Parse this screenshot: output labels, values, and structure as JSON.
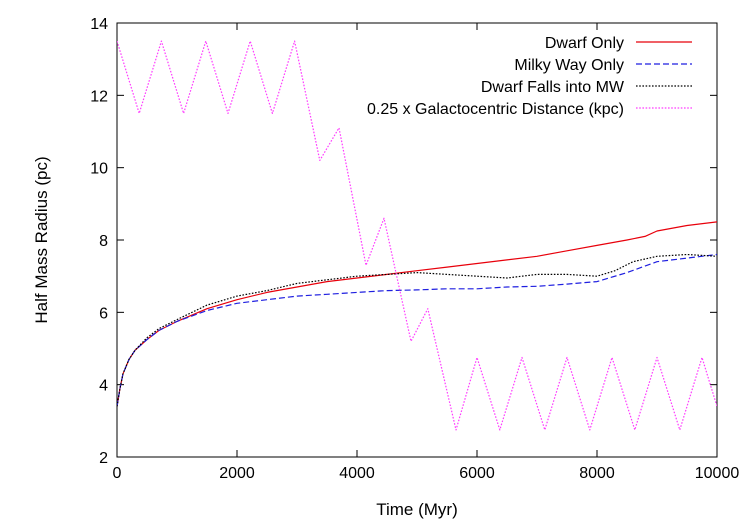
{
  "chart_data": {
    "type": "line",
    "xlabel": "Time (Myr)",
    "ylabel": "Half Mass Radius (pc)",
    "xlim": [
      0,
      10000
    ],
    "ylim": [
      2,
      14
    ],
    "xticks": [
      0,
      2000,
      4000,
      6000,
      8000,
      10000
    ],
    "yticks": [
      2,
      4,
      6,
      8,
      10,
      12,
      14
    ],
    "grid": false,
    "legend_position": "top-right",
    "series": [
      {
        "name": "Dwarf Only",
        "color": "#e8000b",
        "style": "solid",
        "x": [
          0,
          50,
          100,
          200,
          300,
          500,
          700,
          1000,
          1500,
          2000,
          2500,
          3000,
          3500,
          4000,
          4500,
          5000,
          5500,
          6000,
          6500,
          7000,
          7500,
          8000,
          8500,
          8800,
          9000,
          9500,
          10000
        ],
        "y": [
          3.4,
          3.9,
          4.3,
          4.7,
          4.95,
          5.25,
          5.5,
          5.75,
          6.1,
          6.35,
          6.55,
          6.7,
          6.85,
          6.95,
          7.05,
          7.15,
          7.25,
          7.35,
          7.45,
          7.55,
          7.7,
          7.85,
          8.0,
          8.1,
          8.25,
          8.4,
          8.5
        ]
      },
      {
        "name": "Milky Way Only",
        "color": "#1f1fe0",
        "style": "dashed",
        "x": [
          0,
          50,
          100,
          200,
          300,
          500,
          700,
          1000,
          1500,
          2000,
          2500,
          3000,
          3500,
          4000,
          4500,
          5000,
          5500,
          6000,
          6500,
          7000,
          7500,
          8000,
          8500,
          9000,
          9500,
          10000
        ],
        "y": [
          3.4,
          3.9,
          4.3,
          4.7,
          4.95,
          5.25,
          5.5,
          5.75,
          6.05,
          6.25,
          6.35,
          6.45,
          6.5,
          6.55,
          6.6,
          6.62,
          6.65,
          6.65,
          6.7,
          6.72,
          6.78,
          6.85,
          7.1,
          7.4,
          7.5,
          7.6
        ]
      },
      {
        "name": "Dwarf Falls into MW",
        "color": "#000000",
        "style": "dotted",
        "x": [
          0,
          50,
          100,
          200,
          300,
          500,
          700,
          1000,
          1500,
          2000,
          2500,
          3000,
          3500,
          4000,
          4500,
          5000,
          5500,
          6000,
          6500,
          7000,
          7500,
          8000,
          8300,
          8600,
          9000,
          9500,
          10000
        ],
        "y": [
          3.4,
          3.9,
          4.3,
          4.7,
          4.95,
          5.3,
          5.55,
          5.8,
          6.2,
          6.45,
          6.6,
          6.8,
          6.9,
          7.0,
          7.05,
          7.1,
          7.05,
          7.0,
          6.95,
          7.05,
          7.05,
          7.0,
          7.15,
          7.4,
          7.55,
          7.6,
          7.55
        ]
      },
      {
        "name": "0.25 x Galactocentric Distance (kpc)",
        "color": "#ff3cff",
        "style": "dotted",
        "x": [
          0,
          370,
          740,
          1110,
          1480,
          1850,
          2220,
          2590,
          2960,
          3380,
          3700,
          4150,
          4450,
          4900,
          5180,
          5650,
          6000,
          6380,
          6750,
          7130,
          7500,
          7880,
          8250,
          8630,
          9000,
          9380,
          9750,
          10000
        ],
        "y": [
          13.5,
          11.5,
          13.5,
          11.5,
          13.5,
          11.5,
          13.5,
          11.5,
          13.5,
          10.2,
          11.1,
          7.3,
          8.6,
          5.2,
          6.1,
          2.75,
          4.75,
          2.75,
          4.75,
          2.75,
          4.75,
          2.75,
          4.75,
          2.75,
          4.75,
          2.75,
          4.75,
          3.4
        ]
      }
    ]
  }
}
